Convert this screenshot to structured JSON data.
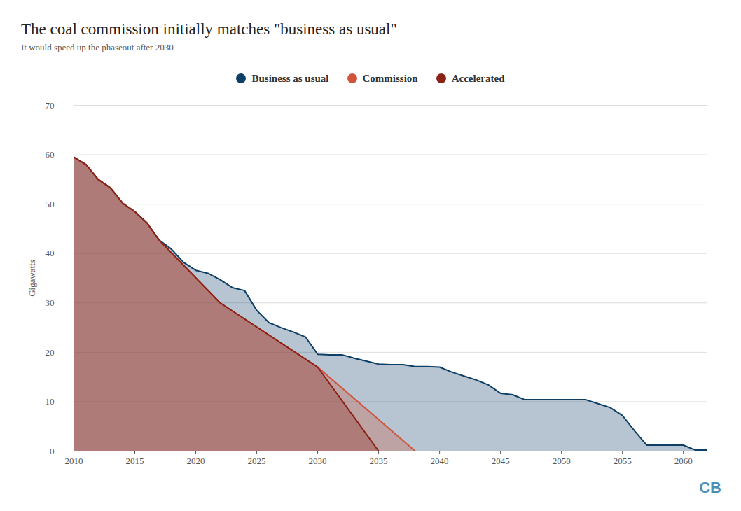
{
  "chart_data": {
    "type": "area",
    "title": "The coal commission initially matches \"business as usual\"",
    "subtitle": "It would speed up the phaseout after 2030",
    "y_label": "Gigawatts",
    "logo": "CB",
    "xlim": [
      2010,
      2062
    ],
    "xticks": [
      2010,
      2015,
      2020,
      2025,
      2030,
      2035,
      2040,
      2045,
      2050,
      2055,
      2060
    ],
    "ylim": [
      0,
      70
    ],
    "yticks": [
      0,
      10,
      20,
      30,
      40,
      50,
      60,
      70
    ],
    "grid": true,
    "legend": "top",
    "series": [
      {
        "name": "Business as usual",
        "color": "#0e3f66",
        "x": [
          2010,
          2011,
          2012,
          2013,
          2014,
          2015,
          2016,
          2017,
          2018,
          2019,
          2020,
          2021,
          2022,
          2023,
          2024,
          2025,
          2026,
          2027,
          2028,
          2029,
          2030,
          2031,
          2032,
          2033,
          2034,
          2035,
          2036,
          2037,
          2038,
          2039,
          2040,
          2041,
          2042,
          2043,
          2044,
          2045,
          2046,
          2047,
          2048,
          2049,
          2050,
          2051,
          2052,
          2053,
          2054,
          2055,
          2056,
          2057,
          2058,
          2059,
          2060,
          2061,
          2062
        ],
        "values": [
          59.5,
          58,
          55,
          53.3,
          50.2,
          48.5,
          46.2,
          42.7,
          40.9,
          38.2,
          36.6,
          36,
          34.7,
          33.1,
          32.5,
          28.5,
          26,
          25,
          24.1,
          23.1,
          19.6,
          19.5,
          19.5,
          18.8,
          18.2,
          17.6,
          17.5,
          17.5,
          17.1,
          17.1,
          17,
          16,
          15.2,
          14.4,
          13.4,
          11.7,
          11.4,
          10.4,
          10.4,
          10.4,
          10.4,
          10.4,
          10.4,
          9.6,
          8.8,
          7.2,
          4.1,
          1.2,
          1.2,
          1.2,
          1.2,
          0.2,
          0.2
        ]
      },
      {
        "name": "Commission",
        "color": "#d0553c",
        "x": [
          2010,
          2011,
          2012,
          2013,
          2014,
          2015,
          2016,
          2017,
          2022,
          2030,
          2038
        ],
        "values": [
          59.5,
          58,
          55,
          53.3,
          50.2,
          48.5,
          46.2,
          42.7,
          30,
          17,
          0
        ]
      },
      {
        "name": "Accelerated",
        "color": "#8a2216",
        "x": [
          2010,
          2011,
          2012,
          2013,
          2014,
          2015,
          2016,
          2017,
          2022,
          2030,
          2035
        ],
        "values": [
          59.5,
          58,
          55,
          53.3,
          50.2,
          48.5,
          46.2,
          42.7,
          30,
          17,
          0
        ]
      }
    ]
  }
}
